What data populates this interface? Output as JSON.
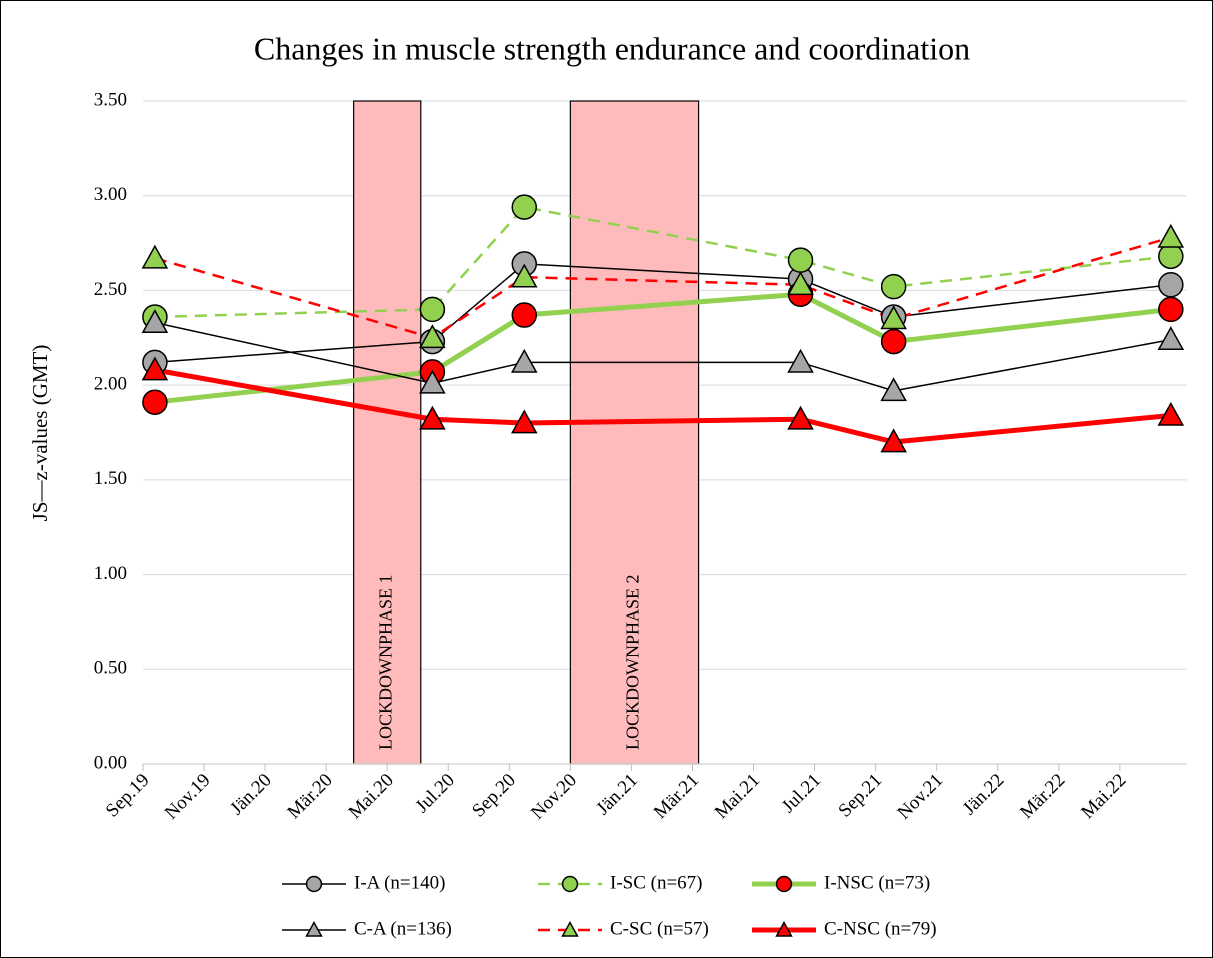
{
  "chart_data": {
    "type": "line",
    "title": "Changes in muscle strength endurance and coordination",
    "y_label": "JS—z-values (GMT)",
    "x": [
      0.39,
      9.48,
      12.49,
      21.54,
      24.59,
      33.67
    ],
    "xlim": [
      0,
      34.2
    ],
    "xticks": [
      {
        "value": 0,
        "label": "Sep.19"
      },
      {
        "value": 2,
        "label": "Nov.19"
      },
      {
        "value": 4,
        "label": "Jän.20"
      },
      {
        "value": 6,
        "label": "Mär.20"
      },
      {
        "value": 8,
        "label": "Mai.20"
      },
      {
        "value": 10,
        "label": "Jul.20"
      },
      {
        "value": 12,
        "label": "Sep.20"
      },
      {
        "value": 14,
        "label": "Nov.20"
      },
      {
        "value": 16,
        "label": "Jän.21"
      },
      {
        "value": 18,
        "label": "Mär.21"
      },
      {
        "value": 20,
        "label": "Mai.21"
      },
      {
        "value": 22,
        "label": "Jul.21"
      },
      {
        "value": 24,
        "label": "Sep.21"
      },
      {
        "value": 26,
        "label": "Nov.21"
      },
      {
        "value": 28,
        "label": "Jän.22"
      },
      {
        "value": 30,
        "label": "Mär.22"
      },
      {
        "value": 32,
        "label": "Mai.22"
      }
    ],
    "ylim": [
      0,
      3.5
    ],
    "yticks": [
      {
        "value": 0,
        "label": "0.00"
      },
      {
        "value": 0.5,
        "label": "0.50"
      },
      {
        "value": 1,
        "label": "1.00"
      },
      {
        "value": 1.5,
        "label": "1.50"
      },
      {
        "value": 2,
        "label": "2.00"
      },
      {
        "value": 2.5,
        "label": "2.50"
      },
      {
        "value": 3,
        "label": "3.00"
      },
      {
        "value": 3.5,
        "label": "3.50"
      }
    ],
    "grid": true,
    "legend": "bottom",
    "shaded_regions": [
      {
        "label": "LOCKDOWNPHASE 1",
        "x": [
          6.9,
          9.1
        ],
        "color": "#ffbbbb"
      },
      {
        "label": "LOCKDOWNPHASE 2",
        "x": [
          14.0,
          18.2
        ],
        "color": "#ffbbbb"
      }
    ],
    "series": [
      {
        "name": "I-A (n=140)",
        "color": "#000000",
        "line_width": 1.5,
        "dash": false,
        "marker": "circle",
        "marker_color": "#a6a6a6",
        "values": [
          2.12,
          2.23,
          2.64,
          2.56,
          2.36,
          2.53
        ]
      },
      {
        "name": "I-SC (n=67)",
        "color": "#92d050",
        "line_width": 2.5,
        "dash": true,
        "marker": "circle",
        "marker_color": "#92d050",
        "values": [
          2.36,
          2.4,
          2.94,
          2.66,
          2.52,
          2.68
        ]
      },
      {
        "name": "I-NSC (n=73)",
        "color": "#92d050",
        "line_width": 5,
        "dash": false,
        "marker": "circle",
        "marker_color": "#ff0000",
        "values": [
          1.91,
          2.07,
          2.37,
          2.48,
          2.23,
          2.4
        ]
      },
      {
        "name": "C-A (n=136)",
        "color": "#000000",
        "line_width": 1.5,
        "dash": false,
        "marker": "triangle",
        "marker_color": "#a6a6a6",
        "values": [
          2.33,
          2.01,
          2.12,
          2.12,
          1.97,
          2.24
        ]
      },
      {
        "name": "C-SC (n=57)",
        "color": "#ff0000",
        "line_width": 2.5,
        "dash": true,
        "marker": "triangle",
        "marker_color": "#92d050",
        "values": [
          2.67,
          2.25,
          2.57,
          2.53,
          2.35,
          2.78
        ]
      },
      {
        "name": "C-NSC (n=79)",
        "color": "#ff0000",
        "line_width": 5,
        "dash": false,
        "marker": "triangle",
        "marker_color": "#ff0000",
        "values": [
          2.08,
          1.82,
          1.8,
          1.82,
          1.7,
          1.84
        ]
      }
    ]
  }
}
